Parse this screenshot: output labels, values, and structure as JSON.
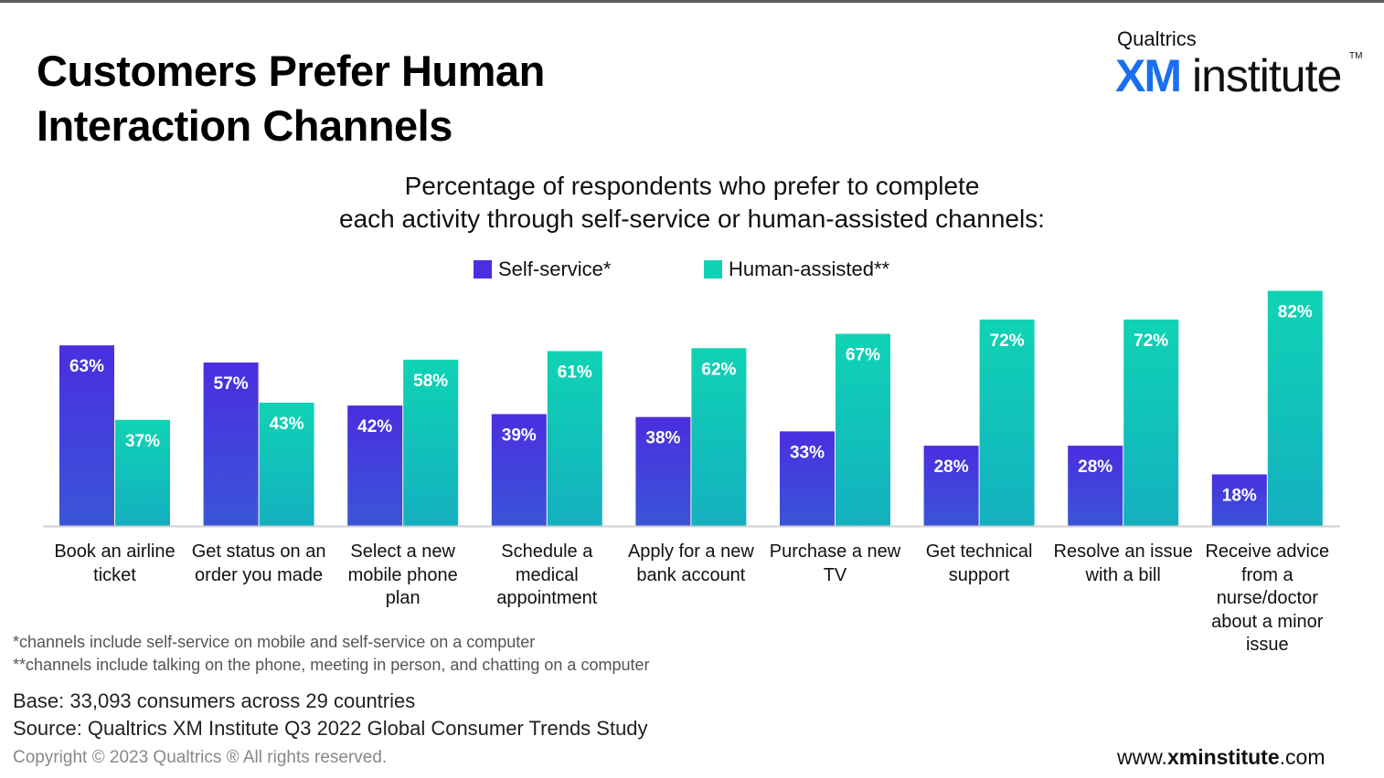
{
  "title_line1": "Customers Prefer Human",
  "title_line2": "Interaction Channels",
  "logo": {
    "brand": "Qualtrics",
    "xm": "XM",
    "institute": "institute",
    "tm": "TM",
    "xm_color": "#1a6ff0"
  },
  "subtitle_line1": "Percentage of respondents who prefer to complete",
  "subtitle_line2": "each activity through self-service or human-assisted channels:",
  "footnotes": [
    "*channels include self-service on mobile and self-service on a computer",
    "**channels include talking on the phone, meeting in person, and chatting on a computer"
  ],
  "base_text": "Base: 33,093 consumers across 29 countries",
  "source_text": "Source: Qualtrics XM Institute Q3 2022 Global Consumer Trends Study",
  "copyright": "Copyright © 2023 Qualtrics ® All rights reserved.",
  "url": {
    "prefix": "www.",
    "bold": "xminstitute",
    "suffix": ".com"
  },
  "chart_data": {
    "type": "bar",
    "categories": [
      "Book an airline ticket",
      "Get status on an order you made",
      "Select a new mobile phone plan",
      "Schedule a medical appointment",
      "Apply for a new bank account",
      "Purchase a new TV",
      "Get technical support",
      "Resolve an issue with a bill",
      "Receive advice from a nurse/doctor about a minor issue"
    ],
    "category_lines": [
      [
        "Book an airline",
        "ticket"
      ],
      [
        "Get status on an",
        "order you made"
      ],
      [
        "Select a new",
        "mobile phone",
        "plan"
      ],
      [
        "Schedule a",
        "medical",
        "appointment"
      ],
      [
        "Apply for a new",
        "bank account"
      ],
      [
        "Purchase a new",
        "TV"
      ],
      [
        "Get technical",
        "support"
      ],
      [
        "Resolve an issue",
        "with a bill"
      ],
      [
        "Receive advice",
        "from a",
        "nurse/doctor",
        "about a minor",
        "issue"
      ]
    ],
    "series": [
      {
        "name": "Self-service*",
        "values": [
          63,
          57,
          42,
          39,
          38,
          33,
          28,
          28,
          18
        ],
        "labels": [
          "63%",
          "57%",
          "42%",
          "39%",
          "38%",
          "33%",
          "28%",
          "28%",
          "18%"
        ],
        "color_top": "#4a2ee0",
        "color_bottom": "#3a55d8"
      },
      {
        "name": "Human-assisted**",
        "values": [
          37,
          43,
          58,
          61,
          62,
          67,
          72,
          72,
          82
        ],
        "labels": [
          "37%",
          "43%",
          "58%",
          "61%",
          "62%",
          "67%",
          "72%",
          "72%",
          "82%"
        ],
        "color_top": "#0fd3b4",
        "color_bottom": "#14b0c0"
      }
    ],
    "unit": "%",
    "ylim": [
      0,
      100
    ],
    "legend_position": "top-center",
    "grid": false
  }
}
